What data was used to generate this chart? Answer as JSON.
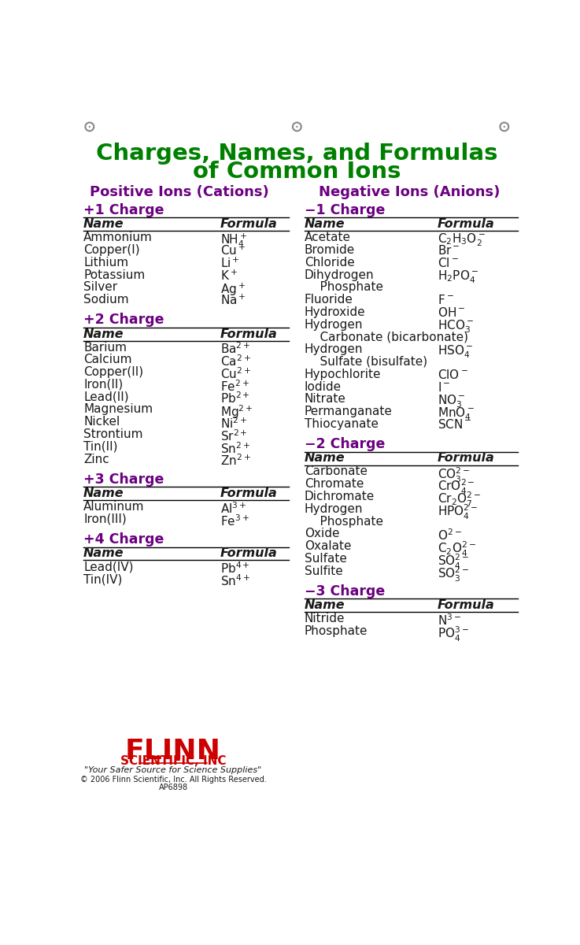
{
  "title_line1": "Charges, Names, and Formulas",
  "title_line2": "of Common Ions",
  "title_color": "#008000",
  "subtitle_left": "Positive Ions (Cations)",
  "subtitle_right": "Negative Ions (Anions)",
  "subtitle_color": "#6B0080",
  "charge_color": "#6B0080",
  "header_color": "#1a1a1a",
  "text_color": "#1a1a1a",
  "bg_color": "#ffffff",
  "left_sections": [
    {
      "charge": "+1 Charge",
      "rows": [
        [
          "Name",
          "Formula",
          true
        ],
        [
          "Ammonium",
          "NH$_4^+$",
          false,
          false
        ],
        [
          "Copper(I)",
          "Cu$^+$",
          false,
          false
        ],
        [
          "Lithium",
          "Li$^+$",
          false,
          false
        ],
        [
          "Potassium",
          "K$^+$",
          false,
          false
        ],
        [
          "Silver",
          "Ag$^+$",
          false,
          false
        ],
        [
          "Sodium",
          "Na$^+$",
          false,
          false
        ]
      ]
    },
    {
      "charge": "+2 Charge",
      "rows": [
        [
          "Name",
          "Formula",
          true
        ],
        [
          "Barium",
          "Ba$^{2+}$",
          false,
          false
        ],
        [
          "Calcium",
          "Ca$^{2+}$",
          false,
          false
        ],
        [
          "Copper(II)",
          "Cu$^{2+}$",
          false,
          false
        ],
        [
          "Iron(II)",
          "Fe$^{2+}$",
          false,
          false
        ],
        [
          "Lead(II)",
          "Pb$^{2+}$",
          false,
          false
        ],
        [
          "Magnesium",
          "Mg$^{2+}$",
          false,
          false
        ],
        [
          "Nickel",
          "Ni$^{2+}$",
          false,
          false
        ],
        [
          "Strontium",
          "Sr$^{2+}$",
          false,
          false
        ],
        [
          "Tin(II)",
          "Sn$^{2+}$",
          false,
          false
        ],
        [
          "Zinc",
          "Zn$^{2+}$",
          false,
          false
        ]
      ]
    },
    {
      "charge": "+3 Charge",
      "rows": [
        [
          "Name",
          "Formula",
          true
        ],
        [
          "Aluminum",
          "Al$^{3+}$",
          false,
          false
        ],
        [
          "Iron(III)",
          "Fe$^{3+}$",
          false,
          false
        ]
      ]
    },
    {
      "charge": "+4 Charge",
      "rows": [
        [
          "Name",
          "Formula",
          true
        ],
        [
          "Lead(IV)",
          "Pb$^{4+}$",
          false,
          false
        ],
        [
          "Tin(IV)",
          "Sn$^{4+}$",
          false,
          false
        ]
      ]
    }
  ],
  "right_sections": [
    {
      "charge": "−1 Charge",
      "rows": [
        [
          "Name",
          "Formula",
          true
        ],
        [
          "Acetate",
          "C$_2$H$_3$O$_2^-$",
          false,
          false
        ],
        [
          "Bromide",
          "Br$^-$",
          false,
          false
        ],
        [
          "Chloride",
          "Cl$^-$",
          false,
          false
        ],
        [
          "Dihydrogen",
          "H$_2$PO$_4^-$",
          false,
          true
        ],
        [
          "    Phosphate",
          "",
          false,
          false
        ],
        [
          "Fluoride",
          "F$^-$",
          false,
          false
        ],
        [
          "Hydroxide",
          "OH$^-$",
          false,
          false
        ],
        [
          "Hydrogen",
          "HCO$_3^-$",
          false,
          true
        ],
        [
          "    Carbonate (bicarbonate)",
          "",
          false,
          false
        ],
        [
          "Hydrogen",
          "HSO$_4^-$",
          false,
          true
        ],
        [
          "    Sulfate (bisulfate)",
          "",
          false,
          false
        ],
        [
          "Hypochlorite",
          "ClO$^-$",
          false,
          false
        ],
        [
          "Iodide",
          "I$^-$",
          false,
          false
        ],
        [
          "Nitrate",
          "NO$_3^-$",
          false,
          false
        ],
        [
          "Permanganate",
          "MnO$_4^-$",
          false,
          false
        ],
        [
          "Thiocyanate",
          "SCN$^-$",
          false,
          false
        ]
      ]
    },
    {
      "charge": "−2 Charge",
      "rows": [
        [
          "Name",
          "Formula",
          true
        ],
        [
          "Carbonate",
          "CO$_3^{2-}$",
          false,
          false
        ],
        [
          "Chromate",
          "CrO$_4^{2-}$",
          false,
          false
        ],
        [
          "Dichromate",
          "Cr$_2$O$_7^{2-}$",
          false,
          false
        ],
        [
          "Hydrogen",
          "HPO$_4^{2-}$",
          false,
          true
        ],
        [
          "    Phosphate",
          "",
          false,
          false
        ],
        [
          "Oxide",
          "O$^{2-}$",
          false,
          false
        ],
        [
          "Oxalate",
          "C$_2$O$_4^{2-}$",
          false,
          false
        ],
        [
          "Sulfate",
          "SO$_4^{2-}$",
          false,
          false
        ],
        [
          "Sulfite",
          "SO$_3^{2-}$",
          false,
          false
        ]
      ]
    },
    {
      "charge": "−3 Charge",
      "rows": [
        [
          "Name",
          "Formula",
          true
        ],
        [
          "Nitride",
          "N$^{3-}$",
          false,
          false
        ],
        [
          "Phosphate",
          "PO$_4^{3-}$",
          false,
          false
        ]
      ]
    }
  ],
  "flinn_tagline": "\"Your Safer Source for Science Supplies\"",
  "copyright_line1": "© 2006 Flinn Scientific, Inc. All Rights Reserved.",
  "copyright_line2": "AP6898"
}
